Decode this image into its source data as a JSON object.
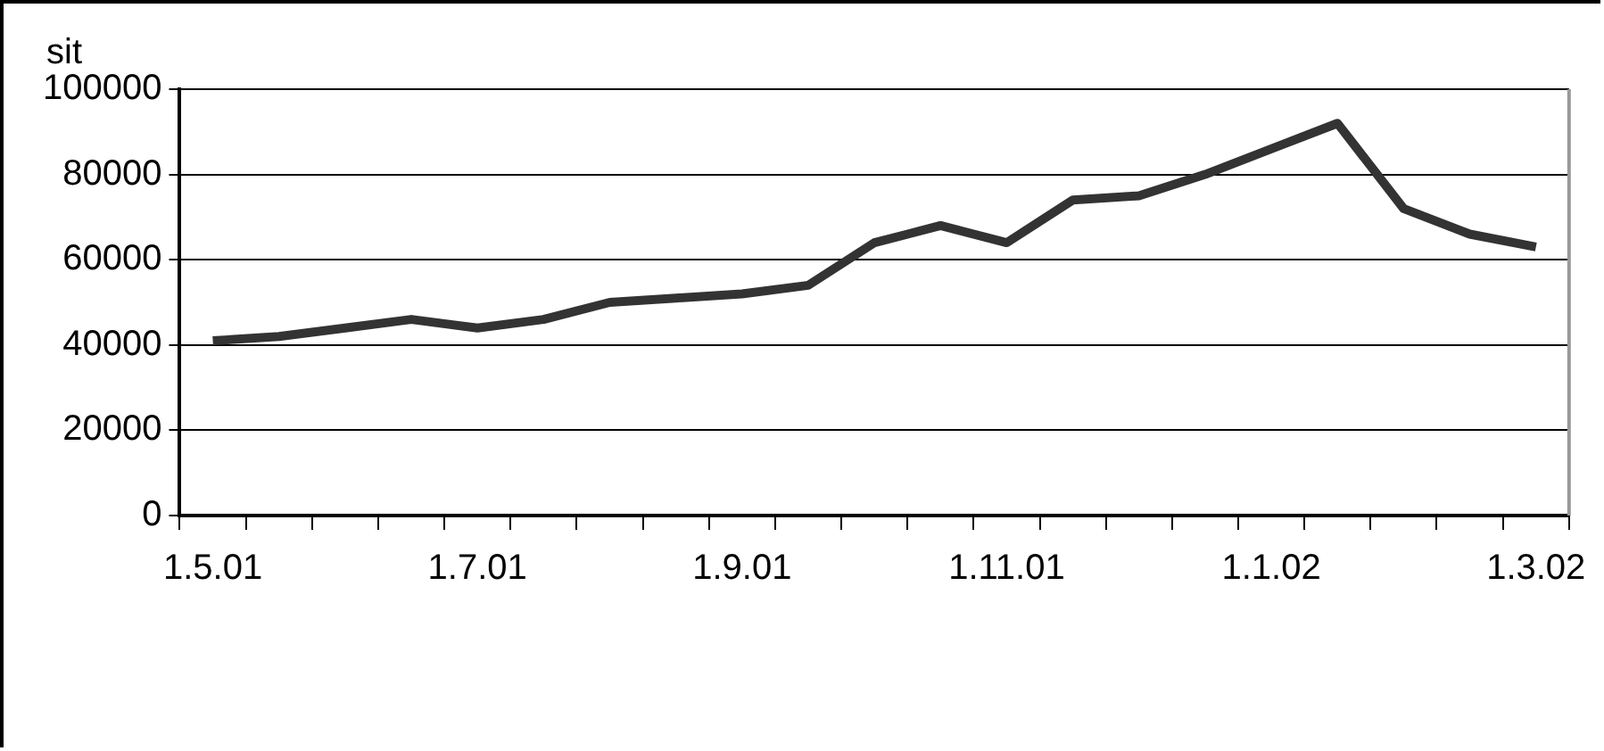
{
  "chart_data": {
    "type": "line",
    "ylabel": "sit",
    "categories": [
      "1.5.01",
      null,
      null,
      null,
      "1.7.01",
      null,
      null,
      null,
      "1.9.01",
      null,
      null,
      null,
      "1.11.01",
      null,
      null,
      null,
      "1.1.02",
      null,
      null,
      null,
      "1.3.02"
    ],
    "series": [
      {
        "color": "#333333",
        "values": [
          41000,
          42000,
          44000,
          46000,
          44000,
          46000,
          50000,
          51000,
          52000,
          54000,
          64000,
          68000,
          64000,
          74000,
          75000,
          80000,
          86000,
          92000,
          72000,
          66000,
          63000
        ]
      }
    ],
    "ylim": [
      0,
      100000
    ],
    "yticks": [
      0,
      20000,
      40000,
      60000,
      80000,
      100000
    ],
    "grid": "y",
    "legend": false,
    "marker": "none",
    "line_style": "solid"
  }
}
